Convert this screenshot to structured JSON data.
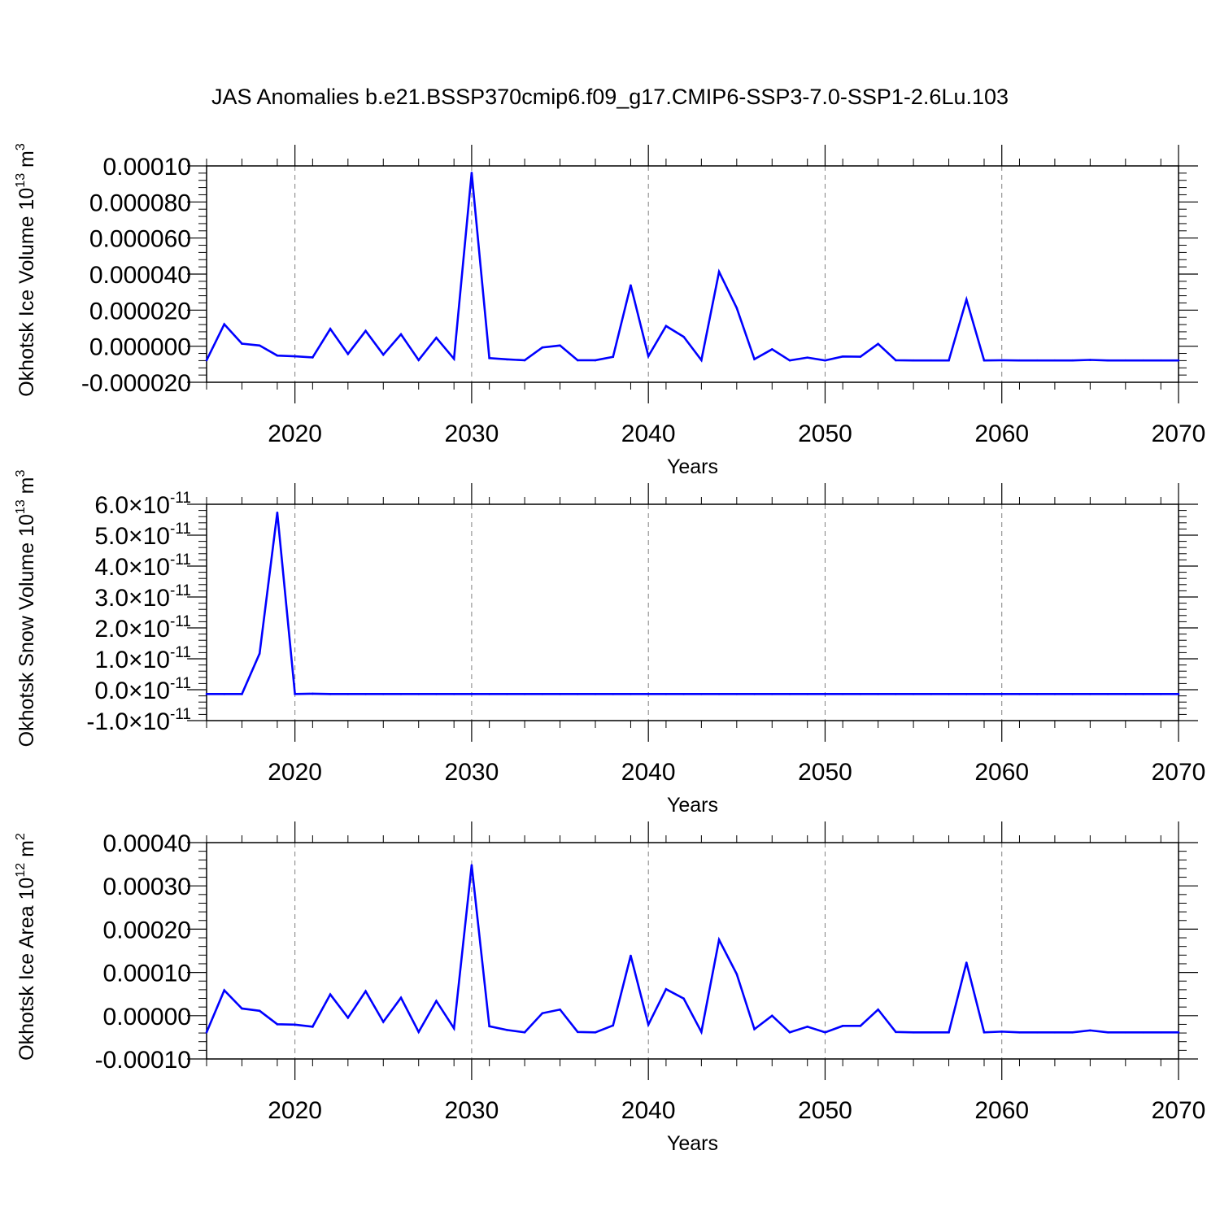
{
  "title": "JAS Anomalies b.e21.BSSP370cmip6.f09_g17.CMIP6-SSP3-7.0-SSP1-2.6Lu.103",
  "line_color": "#0000ff",
  "chart_data": [
    {
      "type": "line",
      "ylabel": "Okhotsk Ice Volume",
      "yunit_base": "10",
      "yunit_exp": "13",
      "yunit_tail": " m",
      "yunit_tail_exp": "3",
      "xlabel": "Years",
      "xlim": [
        2015,
        2070
      ],
      "ylim": [
        -2e-05,
        0.0001
      ],
      "x_ticks": [
        2020,
        2030,
        2040,
        2050,
        2060,
        2070
      ],
      "x_tick_labels": [
        "2020",
        "2030",
        "2040",
        "2050",
        "2060",
        "2070"
      ],
      "y_ticks": [
        -2e-05,
        0.0,
        2e-05,
        4e-05,
        6e-05,
        8e-05,
        0.0001
      ],
      "y_tick_labels": [
        "-0.000020",
        "0.000000",
        "0.000020",
        "0.000040",
        "0.000060",
        "0.000080",
        "0.00010"
      ],
      "grid_x": true,
      "x": [
        2015,
        2016,
        2017,
        2018,
        2019,
        2020,
        2021,
        2022,
        2023,
        2024,
        2025,
        2026,
        2027,
        2028,
        2029,
        2030,
        2031,
        2032,
        2033,
        2034,
        2035,
        2036,
        2037,
        2038,
        2039,
        2040,
        2041,
        2042,
        2043,
        2044,
        2045,
        2046,
        2047,
        2048,
        2049,
        2050,
        2051,
        2052,
        2053,
        2054,
        2055,
        2056,
        2057,
        2058,
        2059,
        2060,
        2061,
        2062,
        2063,
        2064,
        2065,
        2066,
        2067,
        2068,
        2069,
        2070
      ],
      "series": [
        {
          "values": [
            -7.8e-06,
            1.22e-05,
            1.4e-06,
            4e-07,
            -5.2e-06,
            -5.6e-06,
            -6.2e-06,
            9.6e-06,
            -4.3e-06,
            8.5e-06,
            -4.7e-06,
            6.6e-06,
            -7.7e-06,
            4.7e-06,
            -7e-06,
            9.62e-05,
            -6.6e-06,
            -7.3e-06,
            -7.8e-06,
            -7e-07,
            4e-07,
            -7.8e-06,
            -7.8e-06,
            -5.9e-06,
            3.38e-05,
            -5.5e-06,
            1.12e-05,
            5.2e-06,
            -7.7e-06,
            4.13e-05,
            2.12e-05,
            -7.2e-06,
            -1.7e-06,
            -7.9e-06,
            -6.3e-06,
            -7.9e-06,
            -5.7e-06,
            -5.8e-06,
            1.3e-06,
            -7.8e-06,
            -7.9e-06,
            -7.9e-06,
            -7.9e-06,
            2.59e-05,
            -7.9e-06,
            -7.8e-06,
            -7.9e-06,
            -7.9e-06,
            -7.9e-06,
            -7.9e-06,
            -7.6e-06,
            -7.9e-06,
            -7.9e-06,
            -7.9e-06,
            -7.9e-06,
            -7.9e-06
          ]
        }
      ]
    },
    {
      "type": "line",
      "ylabel": "Okhotsk Snow Volume",
      "yunit_base": "10",
      "yunit_exp": "13",
      "yunit_tail": " m",
      "yunit_tail_exp": "3",
      "xlabel": "Years",
      "xlim": [
        2015,
        2070
      ],
      "ylim": [
        -1e-11,
        6e-11
      ],
      "x_ticks": [
        2020,
        2030,
        2040,
        2050,
        2060,
        2070
      ],
      "x_tick_labels": [
        "2020",
        "2030",
        "2040",
        "2050",
        "2060",
        "2070"
      ],
      "y_ticks": [
        -1e-11,
        0,
        1e-11,
        2e-11,
        3e-11,
        4e-11,
        5e-11,
        6e-11
      ],
      "y_tick_mantissas": [
        "-1.0",
        "0.0",
        "1.0",
        "2.0",
        "3.0",
        "4.0",
        "5.0",
        "6.0"
      ],
      "y_tick_times": "×",
      "y_tick_base": "10",
      "y_tick_exp": "-11",
      "grid_x": true,
      "x": [
        2015,
        2016,
        2017,
        2018,
        2019,
        2020,
        2021,
        2022,
        2023,
        2024,
        2025,
        2026,
        2027,
        2028,
        2029,
        2030,
        2031,
        2032,
        2033,
        2034,
        2035,
        2036,
        2037,
        2038,
        2039,
        2040,
        2041,
        2042,
        2043,
        2044,
        2045,
        2046,
        2047,
        2048,
        2049,
        2050,
        2051,
        2052,
        2053,
        2054,
        2055,
        2056,
        2057,
        2058,
        2059,
        2060,
        2061,
        2062,
        2063,
        2064,
        2065,
        2066,
        2067,
        2068,
        2069,
        2070
      ],
      "series": [
        {
          "values": [
            -1.4e-12,
            -1.4e-12,
            -1.4e-12,
            1.17e-11,
            5.73e-11,
            -1.4e-12,
            -1.3e-12,
            -1.4e-12,
            -1.4e-12,
            -1.4e-12,
            -1.4e-12,
            -1.4e-12,
            -1.4e-12,
            -1.4e-12,
            -1.4e-12,
            -1.4e-12,
            -1.4e-12,
            -1.4e-12,
            -1.4e-12,
            -1.4e-12,
            -1.4e-12,
            -1.4e-12,
            -1.4e-12,
            -1.4e-12,
            -1.4e-12,
            -1.4e-12,
            -1.4e-12,
            -1.4e-12,
            -1.4e-12,
            -1.4e-12,
            -1.4e-12,
            -1.4e-12,
            -1.4e-12,
            -1.4e-12,
            -1.4e-12,
            -1.4e-12,
            -1.4e-12,
            -1.4e-12,
            -1.4e-12,
            -1.4e-12,
            -1.4e-12,
            -1.4e-12,
            -1.4e-12,
            -1.4e-12,
            -1.4e-12,
            -1.4e-12,
            -1.4e-12,
            -1.4e-12,
            -1.4e-12,
            -1.4e-12,
            -1.4e-12,
            -1.4e-12,
            -1.4e-12,
            -1.4e-12,
            -1.4e-12,
            -1.4e-12
          ]
        }
      ]
    },
    {
      "type": "line",
      "ylabel": "Okhotsk Ice Area",
      "yunit_base": "10",
      "yunit_exp": "12",
      "yunit_tail": " m",
      "yunit_tail_exp": "2",
      "xlabel": "Years",
      "xlim": [
        2015,
        2070
      ],
      "ylim": [
        -0.0001,
        0.0004
      ],
      "x_ticks": [
        2020,
        2030,
        2040,
        2050,
        2060,
        2070
      ],
      "x_tick_labels": [
        "2020",
        "2030",
        "2040",
        "2050",
        "2060",
        "2070"
      ],
      "y_ticks": [
        -0.0001,
        0.0,
        0.0001,
        0.0002,
        0.0003,
        0.0004
      ],
      "y_tick_labels": [
        "-0.00010",
        "0.00000",
        "0.00010",
        "0.00020",
        "0.00030",
        "0.00040"
      ],
      "grid_x": true,
      "x": [
        2015,
        2016,
        2017,
        2018,
        2019,
        2020,
        2021,
        2022,
        2023,
        2024,
        2025,
        2026,
        2027,
        2028,
        2029,
        2030,
        2031,
        2032,
        2033,
        2034,
        2035,
        2036,
        2037,
        2038,
        2039,
        2040,
        2041,
        2042,
        2043,
        2044,
        2045,
        2046,
        2047,
        2048,
        2049,
        2050,
        2051,
        2052,
        2053,
        2054,
        2055,
        2056,
        2057,
        2058,
        2059,
        2060,
        2061,
        2062,
        2063,
        2064,
        2065,
        2066,
        2067,
        2068,
        2069,
        2070
      ],
      "series": [
        {
          "values": [
            -3.85e-05,
            5.87e-05,
            1.66e-05,
            1.13e-05,
            -1.98e-05,
            -2.07e-05,
            -2.54e-05,
            4.91e-05,
            -4.7e-06,
            5.66e-05,
            -1.42e-05,
            4.15e-05,
            -3.76e-05,
            3.4e-05,
            -2.92e-05,
            0.000348,
            -2.45e-05,
            -3.3e-05,
            -3.85e-05,
            5.7e-06,
            1.42e-05,
            -3.76e-05,
            -3.85e-05,
            -2.26e-05,
            0.0001387,
            -2.07e-05,
            6.13e-05,
            3.96e-05,
            -3.76e-05,
            0.0001754,
            9.62e-05,
            -3.11e-05,
            0.0,
            -3.85e-05,
            -2.54e-05,
            -3.85e-05,
            -2.36e-05,
            -2.36e-05,
            1.42e-05,
            -3.76e-05,
            -3.85e-05,
            -3.85e-05,
            -3.85e-05,
            0.0001226,
            -3.85e-05,
            -3.68e-05,
            -3.85e-05,
            -3.85e-05,
            -3.85e-05,
            -3.85e-05,
            -3.4e-05,
            -3.85e-05,
            -3.85e-05,
            -3.85e-05,
            -3.85e-05,
            -3.85e-05
          ]
        }
      ]
    }
  ]
}
